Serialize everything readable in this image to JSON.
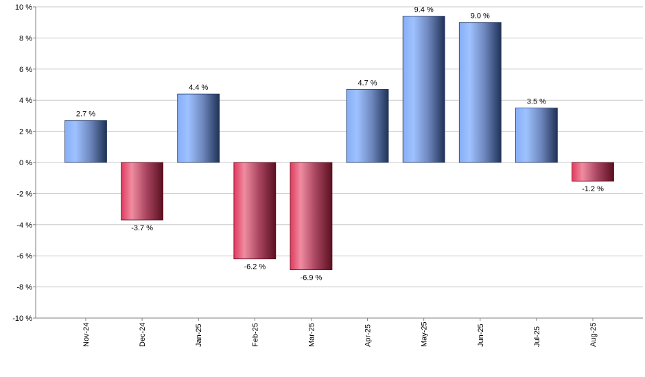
{
  "chart_data": {
    "type": "bar",
    "title": "",
    "xlabel": "",
    "ylabel": "",
    "categories": [
      "Nov-24",
      "Dec-24",
      "Jan-25",
      "Feb-25",
      "Mar-25",
      "Apr-25",
      "May-25",
      "Jun-25",
      "Jul-25",
      "Aug-25"
    ],
    "values": [
      2.7,
      -3.7,
      4.4,
      -6.2,
      -6.9,
      4.7,
      9.4,
      9.0,
      3.5,
      -1.2
    ],
    "value_labels": [
      "2.7 %",
      "-3.7 %",
      "4.4 %",
      "-6.2 %",
      "-6.9 %",
      "4.7 %",
      "9.4 %",
      "9.0 %",
      "3.5 %",
      "-1.2 %"
    ],
    "ylim": [
      -10,
      10
    ],
    "yticks": [
      10,
      8,
      6,
      4,
      2,
      0,
      -2,
      -4,
      -6,
      -8,
      -10
    ],
    "ytick_labels": [
      "10 %",
      "8 %",
      "6 %",
      "4 %",
      "2 %",
      "0 %",
      "-2 %",
      "-4 %",
      "-6 %",
      "-8 %",
      "-10 %"
    ],
    "grid": true,
    "legend": "none",
    "colors": {
      "positive_light": "#9fc3ff",
      "positive_mid": "#6f98e8",
      "positive_dark": "#1f3257",
      "negative_light": "#f08ca0",
      "negative_mid": "#e13a5f",
      "negative_dark": "#5b1020",
      "grid": "#c8c8c8",
      "axis": "#7f7f7f"
    }
  }
}
